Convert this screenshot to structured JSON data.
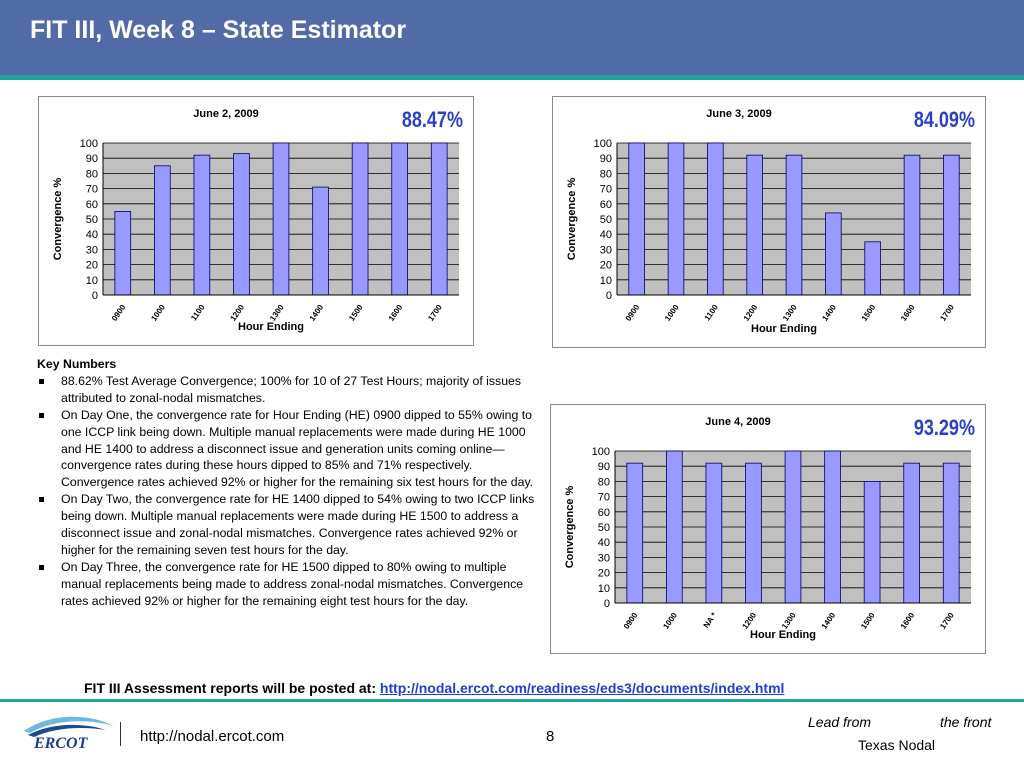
{
  "slide": {
    "title": "FIT III, Week 8 – State Estimator",
    "page_number": "8",
    "footer_url": "http://nodal.ercot.com",
    "tagline": {
      "part1": "Lead from",
      "part2": "the front",
      "part3": "Texas Nodal"
    },
    "logo_text": "ERCOT"
  },
  "key_numbers": {
    "heading": "Key Numbers",
    "bullets": [
      "88.62% Test Average Convergence; 100% for 10 of 27 Test Hours; majority of issues attributed to zonal-nodal mismatches.",
      "On Day One, the convergence rate for Hour Ending (HE) 0900 dipped to 55% owing to one ICCP link being down. Multiple manual replacements were made during HE 1000 and HE 1400 to address a disconnect issue and generation units coming online—convergence rates during these hours dipped to 85% and 71% respectively. Convergence rates achieved 92% or higher for the remaining six test hours for the day.",
      "On Day Two, the convergence rate for HE 1400 dipped to 54% owing to two ICCP links being down. Multiple manual replacements were made during HE 1500 to address a disconnect issue and zonal-nodal mismatches. Convergence rates achieved 92% or higher for the remaining seven test hours for the day.",
      "On Day Three, the convergence rate for HE 1500 dipped to 80% owing to multiple manual replacements being made to address zonal-nodal mismatches. Convergence rates achieved 92% or higher for the remaining eight test hours for the day."
    ]
  },
  "assessment": {
    "label": "FIT III Assessment reports will be posted at: ",
    "link": "http://nodal.ercot.com/readiness/eds3/documents/index.html"
  },
  "chart_data": [
    {
      "type": "bar",
      "title": "June 2, 2009",
      "badge": "88.47%",
      "xlabel": "Hour Ending",
      "ylabel": "Convergence %",
      "categories": [
        "0900",
        "1000",
        "1100",
        "1200",
        "1300",
        "1400",
        "1500",
        "1600",
        "1700"
      ],
      "values": [
        55,
        85,
        92,
        93,
        100,
        71,
        100,
        100,
        100
      ],
      "yticks": [
        "0",
        "10",
        "20",
        "30",
        "40",
        "50",
        "60",
        "70",
        "80",
        "90",
        "100"
      ],
      "ylim": [
        0,
        100
      ],
      "grid": true,
      "bar_color": "#9999ff",
      "plot_bg": "#c0c0c0",
      "badge_color": "#2a3fc4"
    },
    {
      "type": "bar",
      "title": "June 3, 2009",
      "badge": "84.09%",
      "xlabel": "Hour Ending",
      "ylabel": "Convergence %",
      "categories": [
        "0900",
        "1000",
        "1100",
        "1200",
        "1300",
        "1400",
        "1500",
        "1600",
        "1700"
      ],
      "values": [
        100,
        100,
        100,
        92,
        92,
        54,
        35,
        92,
        92
      ],
      "yticks": [
        "0",
        "10",
        "20",
        "30",
        "40",
        "50",
        "60",
        "70",
        "80",
        "90",
        "100"
      ],
      "ylim": [
        0,
        100
      ],
      "grid": true,
      "bar_color": "#9999ff",
      "plot_bg": "#c0c0c0",
      "badge_color": "#2a3fc4"
    },
    {
      "type": "bar",
      "title": "June 4, 2009",
      "badge": "93.29%",
      "xlabel": "Hour Ending",
      "ylabel": "Convergence %",
      "categories": [
        "0900",
        "1000",
        "NA *",
        "1200",
        "1300",
        "1400",
        "1500",
        "1600",
        "1700"
      ],
      "values": [
        92,
        100,
        92,
        92,
        100,
        100,
        80,
        92,
        92
      ],
      "yticks": [
        "0",
        "10",
        "20",
        "30",
        "40",
        "50",
        "60",
        "70",
        "80",
        "90",
        "100"
      ],
      "ylim": [
        0,
        100
      ],
      "grid": true,
      "bar_color": "#9999ff",
      "plot_bg": "#c0c0c0",
      "badge_color": "#2a3fc4"
    }
  ]
}
